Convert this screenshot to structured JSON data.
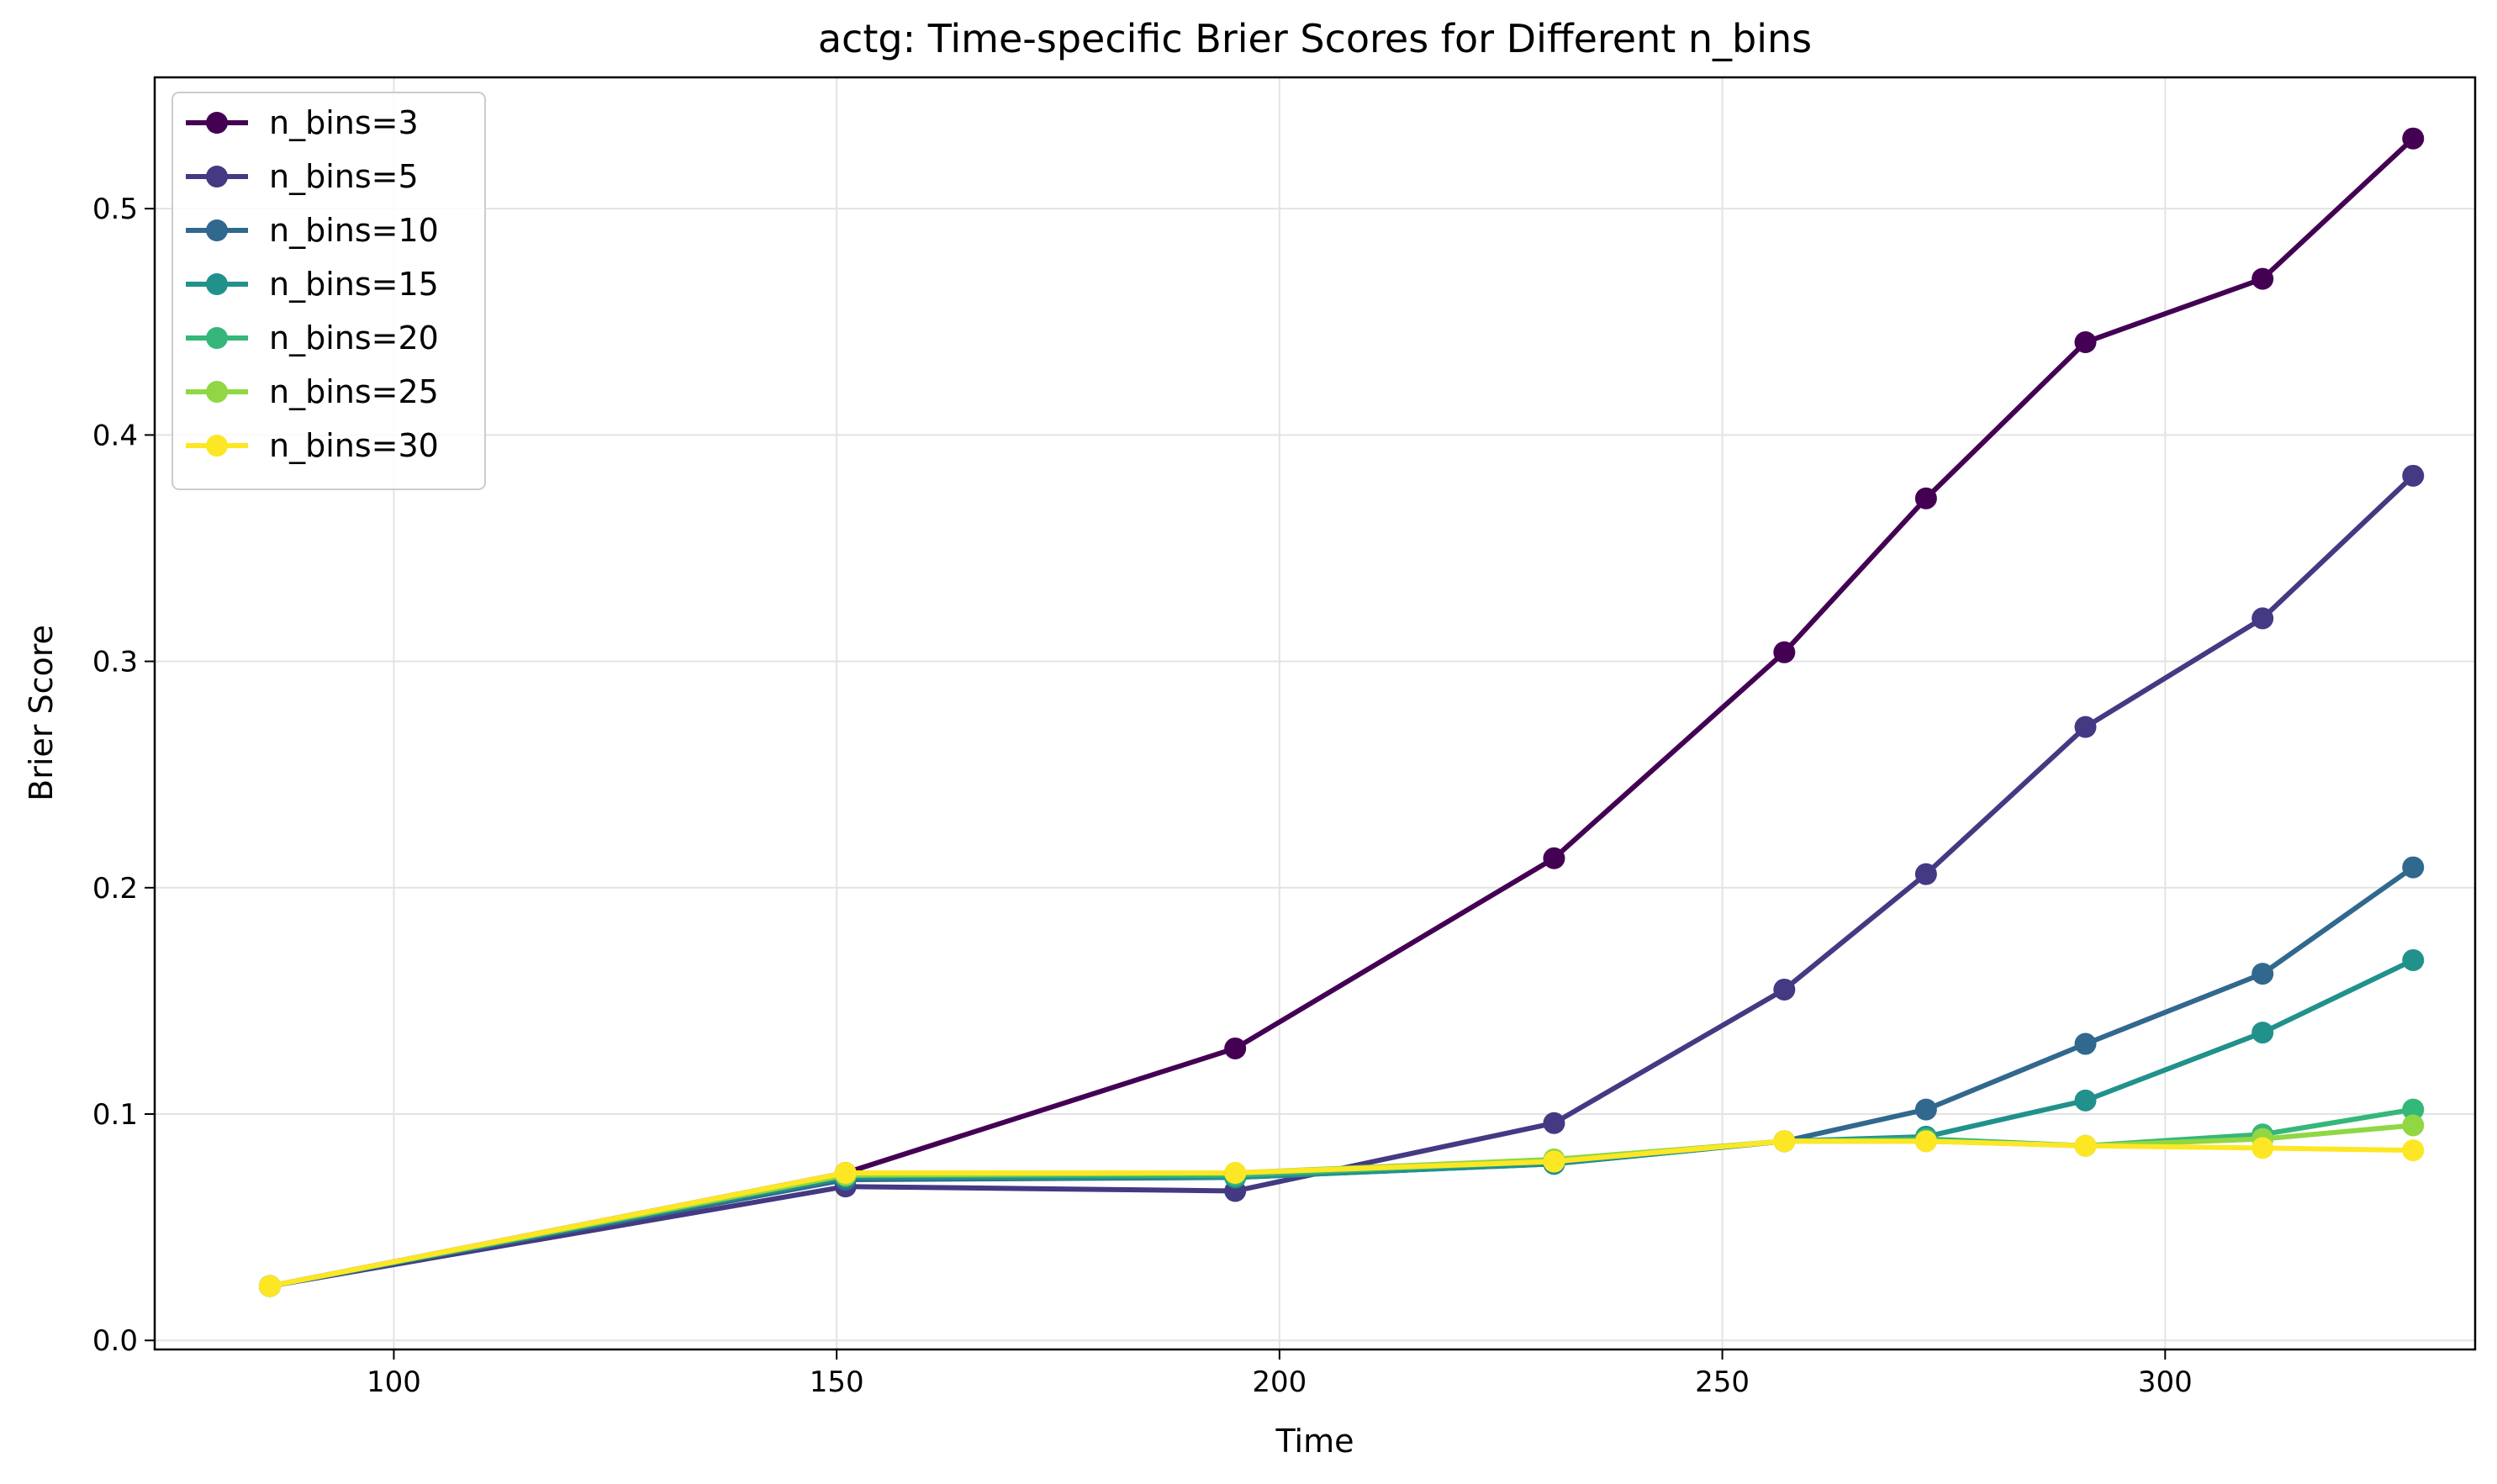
{
  "chart_data": {
    "type": "line",
    "title": "actg: Time-specific Brier Scores for Different n_bins",
    "xlabel": "Time",
    "ylabel": "Brier Score",
    "xlim": [
      73,
      335
    ],
    "ylim": [
      -0.004,
      0.558
    ],
    "xticks": [
      100,
      150,
      200,
      250,
      300
    ],
    "yticks": [
      0.0,
      0.1,
      0.2,
      0.3,
      0.4,
      0.5
    ],
    "xtick_labels": [
      "100",
      "150",
      "200",
      "250",
      "300"
    ],
    "ytick_labels": [
      "0.0",
      "0.1",
      "0.2",
      "0.3",
      "0.4",
      "0.5"
    ],
    "grid": true,
    "legend_position": "top-left",
    "x": [
      86,
      151,
      195,
      231,
      257,
      273,
      291,
      311,
      328
    ],
    "series": [
      {
        "name": "n_bins=3",
        "color": "#440154",
        "values": [
          0.024,
          0.074,
          0.129,
          0.213,
          0.304,
          0.372,
          0.441,
          0.469,
          0.531
        ]
      },
      {
        "name": "n_bins=5",
        "color": "#443983",
        "values": [
          0.024,
          0.068,
          0.066,
          0.096,
          0.155,
          0.206,
          0.271,
          0.319,
          0.382
        ]
      },
      {
        "name": "n_bins=10",
        "color": "#31688e",
        "values": [
          0.024,
          0.071,
          0.072,
          0.078,
          0.088,
          0.102,
          0.131,
          0.162,
          0.209
        ]
      },
      {
        "name": "n_bins=15",
        "color": "#21918c",
        "values": [
          0.024,
          0.072,
          0.072,
          0.078,
          0.088,
          0.09,
          0.106,
          0.136,
          0.168
        ]
      },
      {
        "name": "n_bins=20",
        "color": "#35b779",
        "values": [
          0.024,
          0.073,
          0.073,
          0.079,
          0.088,
          0.089,
          0.086,
          0.091,
          0.102
        ]
      },
      {
        "name": "n_bins=25",
        "color": "#90d743",
        "values": [
          0.024,
          0.073,
          0.074,
          0.08,
          0.088,
          0.088,
          0.086,
          0.089,
          0.095
        ]
      },
      {
        "name": "n_bins=30",
        "color": "#fde725",
        "values": [
          0.024,
          0.074,
          0.074,
          0.079,
          0.088,
          0.088,
          0.086,
          0.085,
          0.084
        ]
      }
    ]
  }
}
